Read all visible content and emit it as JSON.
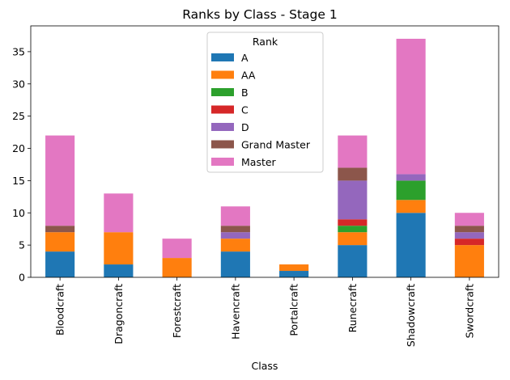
{
  "chart_data": {
    "type": "bar",
    "stacked": true,
    "title": "Ranks by Class - Stage 1",
    "xlabel": "Class",
    "ylabel": "",
    "ylim": [
      0,
      39
    ],
    "yticks": [
      0,
      5,
      10,
      15,
      20,
      25,
      30,
      35
    ],
    "categories": [
      "Bloodcraft",
      "Dragoncraft",
      "Forestcraft",
      "Havencraft",
      "Portalcraft",
      "Runecraft",
      "Shadowcraft",
      "Swordcraft"
    ],
    "legend": {
      "title": "Rank",
      "placement": "upper-center"
    },
    "series": [
      {
        "name": "A",
        "color": "#1f77b4",
        "values": [
          4,
          2,
          0,
          4,
          1,
          5,
          10,
          0
        ]
      },
      {
        "name": "AA",
        "color": "#ff7f0e",
        "values": [
          3,
          5,
          3,
          2,
          1,
          2,
          2,
          5
        ]
      },
      {
        "name": "B",
        "color": "#2ca02c",
        "values": [
          0,
          0,
          0,
          0,
          0,
          1,
          3,
          0
        ]
      },
      {
        "name": "C",
        "color": "#d62728",
        "values": [
          0,
          0,
          0,
          0,
          0,
          1,
          0,
          1
        ]
      },
      {
        "name": "D",
        "color": "#9467bd",
        "values": [
          0,
          0,
          0,
          1,
          0,
          6,
          1,
          1
        ]
      },
      {
        "name": "Grand Master",
        "color": "#8c564b",
        "values": [
          1,
          0,
          0,
          1,
          0,
          2,
          0,
          1
        ]
      },
      {
        "name": "Master",
        "color": "#e377c2",
        "values": [
          14,
          6,
          3,
          3,
          0,
          5,
          21,
          2
        ]
      }
    ]
  }
}
